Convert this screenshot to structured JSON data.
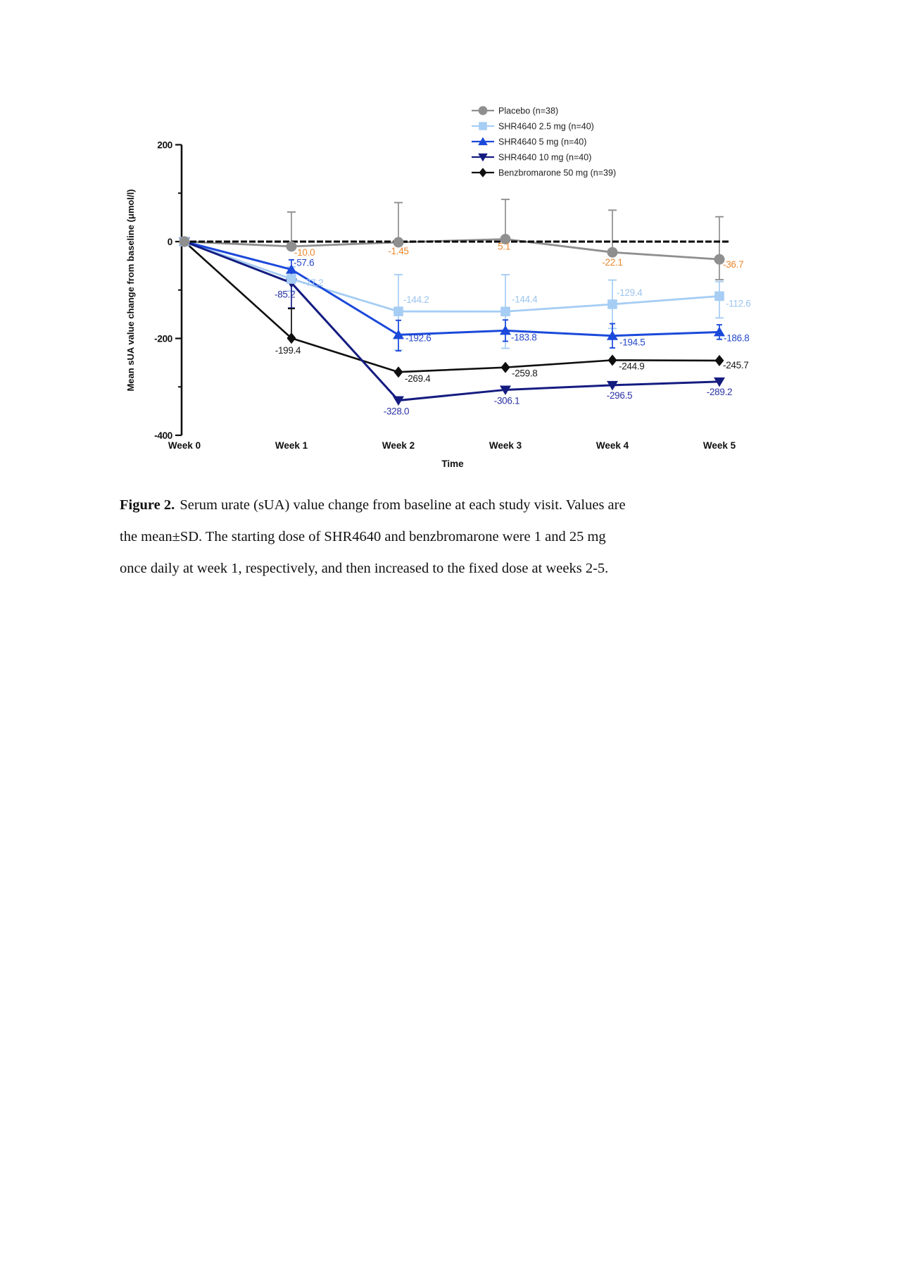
{
  "figure": {
    "caption_label": "Figure 2.",
    "caption_line1": "Serum urate (sUA) value change from baseline at each study visit. Values are",
    "caption_line2": "the mean±SD. The starting dose of SHR4640 and benzbromarone were 1 and 25 mg",
    "caption_line3": "once daily at week 1, respectively, and then increased to the fixed dose at weeks 2-5."
  },
  "chart_data": {
    "type": "line",
    "title": "",
    "xlabel": "Time",
    "ylabel": "Mean sUA value change from baseline (μmol/l)",
    "categories": [
      "Week 0",
      "Week 1",
      "Week 2",
      "Week 3",
      "Week 4",
      "Week 5"
    ],
    "ylim": [
      -400,
      200
    ],
    "yticks_major": [
      200,
      0,
      -200,
      -400
    ],
    "yticks_minor": [
      100,
      -100,
      -300
    ],
    "grid": false,
    "zero_reference_line": true,
    "legend_position": "top-right",
    "series": [
      {
        "name": "Placebo (n=38)",
        "marker": "circle",
        "color": "#8f8f8f",
        "label_color": "#e8872f",
        "values": [
          0,
          -10.0,
          -1.45,
          5.1,
          -22.1,
          -36.7
        ],
        "point_labels": [
          "",
          "-10.0",
          "-1.45",
          "5.1",
          "-22.1",
          "-36.7"
        ],
        "sd_up": [
          0,
          71,
          82,
          82,
          87,
          88
        ],
        "sd_down": [
          0,
          0,
          0,
          0,
          0,
          42
        ]
      },
      {
        "name": "SHR4640 2.5 mg (n=40)",
        "marker": "square",
        "color": "#a6cdf4",
        "label_color": "#9cc4ee",
        "values": [
          0,
          -77.2,
          -144.2,
          -144.4,
          -129.4,
          -112.6
        ],
        "point_labels": [
          "",
          "-77.2",
          "-144.2",
          "-144.4",
          "-129.4",
          "-112.6"
        ],
        "sd_up": [
          0,
          25,
          76,
          76,
          50,
          30
        ],
        "sd_down": [
          0,
          25,
          80,
          76,
          50,
          45
        ]
      },
      {
        "name": "SHR4640 5 mg (n=40)",
        "marker": "triangle-up",
        "color": "#1b49da",
        "label_color": "#2448c8",
        "values": [
          0,
          -57.6,
          -192.6,
          -183.8,
          -194.5,
          -186.8
        ],
        "point_labels": [
          "",
          "-57.6",
          "-192.6",
          "-183.8",
          "-194.5",
          "-186.8"
        ],
        "sd_up": [
          0,
          20,
          30,
          22,
          25,
          15
        ],
        "sd_down": [
          0,
          20,
          33,
          22,
          25,
          15
        ]
      },
      {
        "name": "SHR4640 10 mg (n=40)",
        "marker": "triangle-down",
        "color": "#141c80",
        "label_color": "#2a32a4",
        "values": [
          0,
          -85.2,
          -328.0,
          -306.1,
          -296.5,
          -289.2
        ],
        "point_labels": [
          "",
          "-85.2",
          "-328.0",
          "-306.1",
          "-296.5",
          "-289.2"
        ],
        "sd_up": [
          0,
          15,
          0,
          0,
          0,
          0
        ],
        "sd_down": [
          0,
          52,
          0,
          0,
          0,
          0
        ]
      },
      {
        "name": "Benzbromarone 50 mg (n=39)",
        "marker": "diamond",
        "color": "#0f0f0f",
        "label_color": "#1a1a1a",
        "values": [
          0,
          -199.4,
          -269.4,
          -259.8,
          -244.9,
          -245.7
        ],
        "point_labels": [
          "",
          "-199.4",
          "-269.4",
          "-259.8",
          "-244.9",
          "-245.7"
        ],
        "sd_up": [
          0,
          61,
          0,
          0,
          0,
          0
        ],
        "sd_down": [
          0,
          0,
          0,
          0,
          0,
          0
        ]
      }
    ]
  }
}
